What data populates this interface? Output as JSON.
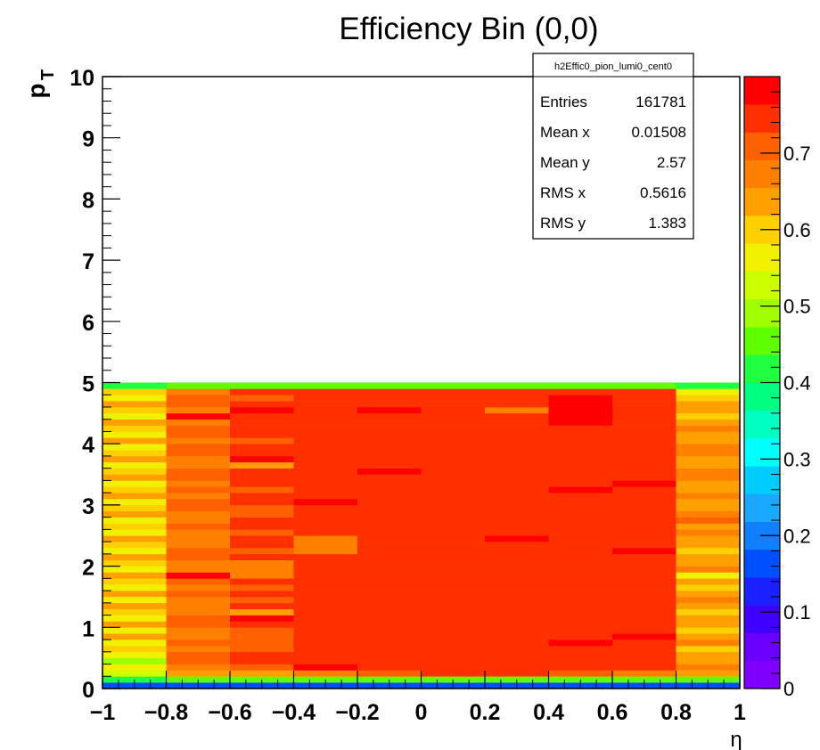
{
  "chart_data": {
    "type": "heatmap",
    "title": "Efficiency Bin (0,0)",
    "xlabel": "η",
    "ylabel": "p",
    "ylabel_sub": "T",
    "xlim": [
      -1,
      1
    ],
    "ylim": [
      0,
      10
    ],
    "zlim": [
      0,
      0.8
    ],
    "x_ticks": [
      "−1",
      "−0.8",
      "−0.6",
      "−0.4",
      "−0.2",
      "0",
      "0.2",
      "0.4",
      "0.6",
      "0.8",
      "1"
    ],
    "y_ticks": [
      "0",
      "1",
      "2",
      "3",
      "4",
      "5",
      "6",
      "7",
      "8",
      "9",
      "10"
    ],
    "z_ticks": [
      "0",
      "0.1",
      "0.2",
      "0.3",
      "0.4",
      "0.5",
      "0.6",
      "0.7"
    ],
    "x_edges": [
      -1,
      -0.8,
      -0.6,
      -0.4,
      -0.2,
      0,
      0.2,
      0.4,
      0.6,
      0.8,
      1
    ],
    "y_range_filled": [
      0,
      5
    ],
    "y_bins": 50,
    "column_profiles": [
      [
        0.16,
        0.42,
        0.52,
        0.55,
        0.5,
        0.56,
        0.6,
        0.58,
        0.62,
        0.57,
        0.62,
        0.55,
        0.6,
        0.62,
        0.58,
        0.63,
        0.56,
        0.6,
        0.62,
        0.55,
        0.6,
        0.62,
        0.56,
        0.61,
        0.63,
        0.58,
        0.6,
        0.55,
        0.62,
        0.6,
        0.57,
        0.62,
        0.6,
        0.58,
        0.63,
        0.6,
        0.56,
        0.62,
        0.6,
        0.58,
        0.62,
        0.55,
        0.6,
        0.62,
        0.58,
        0.6,
        0.62,
        0.57,
        0.6,
        0.42
      ],
      [
        0.16,
        0.44,
        0.63,
        0.69,
        0.71,
        0.7,
        0.66,
        0.7,
        0.68,
        0.66,
        0.7,
        0.72,
        0.68,
        0.69,
        0.66,
        0.72,
        0.69,
        0.72,
        0.78,
        0.68,
        0.66,
        0.7,
        0.71,
        0.68,
        0.66,
        0.69,
        0.72,
        0.67,
        0.66,
        0.7,
        0.71,
        0.68,
        0.7,
        0.66,
        0.72,
        0.7,
        0.68,
        0.66,
        0.7,
        0.72,
        0.68,
        0.7,
        0.72,
        0.68,
        0.78,
        0.66,
        0.7,
        0.72,
        0.68,
        0.44
      ],
      [
        0.16,
        0.44,
        0.64,
        0.72,
        0.73,
        0.74,
        0.72,
        0.7,
        0.72,
        0.72,
        0.73,
        0.78,
        0.62,
        0.76,
        0.72,
        0.74,
        0.72,
        0.73,
        0.66,
        0.66,
        0.66,
        0.73,
        0.72,
        0.74,
        0.74,
        0.72,
        0.73,
        0.74,
        0.72,
        0.7,
        0.74,
        0.73,
        0.72,
        0.74,
        0.76,
        0.75,
        0.62,
        0.78,
        0.76,
        0.73,
        0.72,
        0.74,
        0.73,
        0.74,
        0.76,
        0.78,
        0.74,
        0.72,
        0.76,
        0.44
      ],
      [
        0.16,
        0.44,
        0.66,
        0.77,
        0.74,
        0.74,
        0.75,
        0.74,
        0.74,
        0.74,
        0.74,
        0.74,
        0.74,
        0.74,
        0.74,
        0.74,
        0.74,
        0.74,
        0.74,
        0.74,
        0.74,
        0.74,
        0.66,
        0.66,
        0.66,
        0.74,
        0.74,
        0.74,
        0.76,
        0.74,
        0.78,
        0.74,
        0.76,
        0.74,
        0.74,
        0.74,
        0.74,
        0.74,
        0.74,
        0.76,
        0.74,
        0.76,
        0.74,
        0.74,
        0.74,
        0.74,
        0.74,
        0.74,
        0.74,
        0.44
      ],
      [
        0.16,
        0.44,
        0.7,
        0.74,
        0.74,
        0.74,
        0.74,
        0.74,
        0.74,
        0.74,
        0.74,
        0.74,
        0.74,
        0.74,
        0.74,
        0.74,
        0.74,
        0.74,
        0.74,
        0.74,
        0.74,
        0.74,
        0.74,
        0.74,
        0.74,
        0.74,
        0.74,
        0.74,
        0.74,
        0.74,
        0.74,
        0.74,
        0.74,
        0.76,
        0.74,
        0.78,
        0.74,
        0.76,
        0.74,
        0.74,
        0.74,
        0.74,
        0.76,
        0.74,
        0.74,
        0.78,
        0.74,
        0.74,
        0.74,
        0.44
      ],
      [
        0.16,
        0.44,
        0.74,
        0.74,
        0.74,
        0.74,
        0.74,
        0.74,
        0.74,
        0.74,
        0.74,
        0.74,
        0.76,
        0.74,
        0.74,
        0.74,
        0.74,
        0.74,
        0.74,
        0.74,
        0.74,
        0.74,
        0.74,
        0.74,
        0.74,
        0.76,
        0.74,
        0.74,
        0.74,
        0.74,
        0.74,
        0.74,
        0.76,
        0.74,
        0.74,
        0.74,
        0.74,
        0.74,
        0.74,
        0.74,
        0.74,
        0.74,
        0.76,
        0.74,
        0.74,
        0.74,
        0.74,
        0.74,
        0.74,
        0.44
      ],
      [
        0.16,
        0.44,
        0.74,
        0.74,
        0.74,
        0.74,
        0.74,
        0.74,
        0.74,
        0.74,
        0.76,
        0.76,
        0.76,
        0.76,
        0.74,
        0.74,
        0.74,
        0.74,
        0.74,
        0.74,
        0.74,
        0.74,
        0.76,
        0.74,
        0.78,
        0.74,
        0.74,
        0.74,
        0.74,
        0.74,
        0.76,
        0.76,
        0.76,
        0.76,
        0.76,
        0.76,
        0.76,
        0.76,
        0.76,
        0.76,
        0.76,
        0.76,
        0.74,
        0.74,
        0.74,
        0.66,
        0.74,
        0.74,
        0.74,
        0.44
      ],
      [
        0.16,
        0.44,
        0.72,
        0.74,
        0.74,
        0.76,
        0.74,
        0.78,
        0.74,
        0.74,
        0.74,
        0.74,
        0.74,
        0.74,
        0.74,
        0.74,
        0.74,
        0.74,
        0.76,
        0.76,
        0.74,
        0.74,
        0.74,
        0.74,
        0.74,
        0.74,
        0.74,
        0.76,
        0.74,
        0.74,
        0.74,
        0.74,
        0.78,
        0.76,
        0.76,
        0.74,
        0.74,
        0.74,
        0.76,
        0.76,
        0.76,
        0.76,
        0.76,
        0.78,
        0.78,
        0.78,
        0.78,
        0.78,
        0.74,
        0.44
      ],
      [
        0.16,
        0.44,
        0.68,
        0.74,
        0.76,
        0.74,
        0.76,
        0.74,
        0.78,
        0.74,
        0.74,
        0.76,
        0.76,
        0.74,
        0.74,
        0.74,
        0.76,
        0.74,
        0.74,
        0.74,
        0.76,
        0.74,
        0.78,
        0.74,
        0.74,
        0.76,
        0.74,
        0.76,
        0.74,
        0.74,
        0.74,
        0.76,
        0.74,
        0.78,
        0.76,
        0.74,
        0.74,
        0.76,
        0.74,
        0.74,
        0.76,
        0.74,
        0.74,
        0.76,
        0.74,
        0.74,
        0.76,
        0.74,
        0.74,
        0.44
      ],
      [
        0.16,
        0.44,
        0.62,
        0.66,
        0.64,
        0.62,
        0.6,
        0.66,
        0.62,
        0.6,
        0.64,
        0.62,
        0.6,
        0.62,
        0.66,
        0.64,
        0.6,
        0.62,
        0.58,
        0.66,
        0.64,
        0.62,
        0.6,
        0.62,
        0.64,
        0.66,
        0.62,
        0.7,
        0.66,
        0.62,
        0.64,
        0.66,
        0.62,
        0.64,
        0.66,
        0.68,
        0.64,
        0.62,
        0.66,
        0.66,
        0.62,
        0.64,
        0.66,
        0.62,
        0.6,
        0.62,
        0.62,
        0.6,
        0.58,
        0.42
      ]
    ],
    "palette": [
      "#8000ff",
      "#6a00ff",
      "#4000ff",
      "#1a20ff",
      "#0050ff",
      "#1080ff",
      "#1aa8ff",
      "#00ccff",
      "#00ffff",
      "#00ffc0",
      "#00ff80",
      "#20ff40",
      "#60ff00",
      "#a0ff00",
      "#ccff00",
      "#f0f000",
      "#ffd000",
      "#ffa000",
      "#ff8000",
      "#ff6000",
      "#ff3000",
      "#ff0000"
    ]
  },
  "stats_box": {
    "name": "h2Effic0_pion_lumi0_cent0",
    "rows": [
      {
        "label": "Entries",
        "value": "161781"
      },
      {
        "label": "Mean x",
        "value": "0.01508"
      },
      {
        "label": "Mean y",
        "value": "2.57"
      },
      {
        "label": "RMS x",
        "value": "0.5616"
      },
      {
        "label": "RMS y",
        "value": "1.383"
      }
    ]
  }
}
